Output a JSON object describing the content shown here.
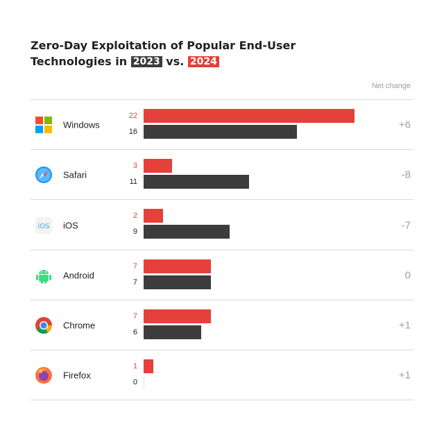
{
  "title": {
    "line1": "Zero-Day Exploitation of Popular End-User",
    "line2_prefix": "Technologies in",
    "badge_2023": "2023",
    "vs": "vs.",
    "badge_2024": "2024"
  },
  "net_change_header": "Net change",
  "colors": {
    "y2024": "#e5403a",
    "y2023": "#3c3c3c"
  },
  "chart_data": {
    "type": "bar",
    "orientation": "horizontal",
    "categories": [
      "Windows",
      "Safari",
      "iOS",
      "Android",
      "Chrome",
      "Firefox"
    ],
    "series": [
      {
        "name": "2024",
        "values": [
          22,
          3,
          2,
          7,
          7,
          1
        ]
      },
      {
        "name": "2023",
        "values": [
          16,
          11,
          9,
          7,
          6,
          0
        ]
      }
    ],
    "net_change": [
      "+6",
      "-8",
      "-7",
      "0",
      "+1",
      "+1"
    ],
    "icons": [
      "windows-icon",
      "safari-icon",
      "ios-icon",
      "android-icon",
      "chrome-icon",
      "firefox-icon"
    ]
  }
}
